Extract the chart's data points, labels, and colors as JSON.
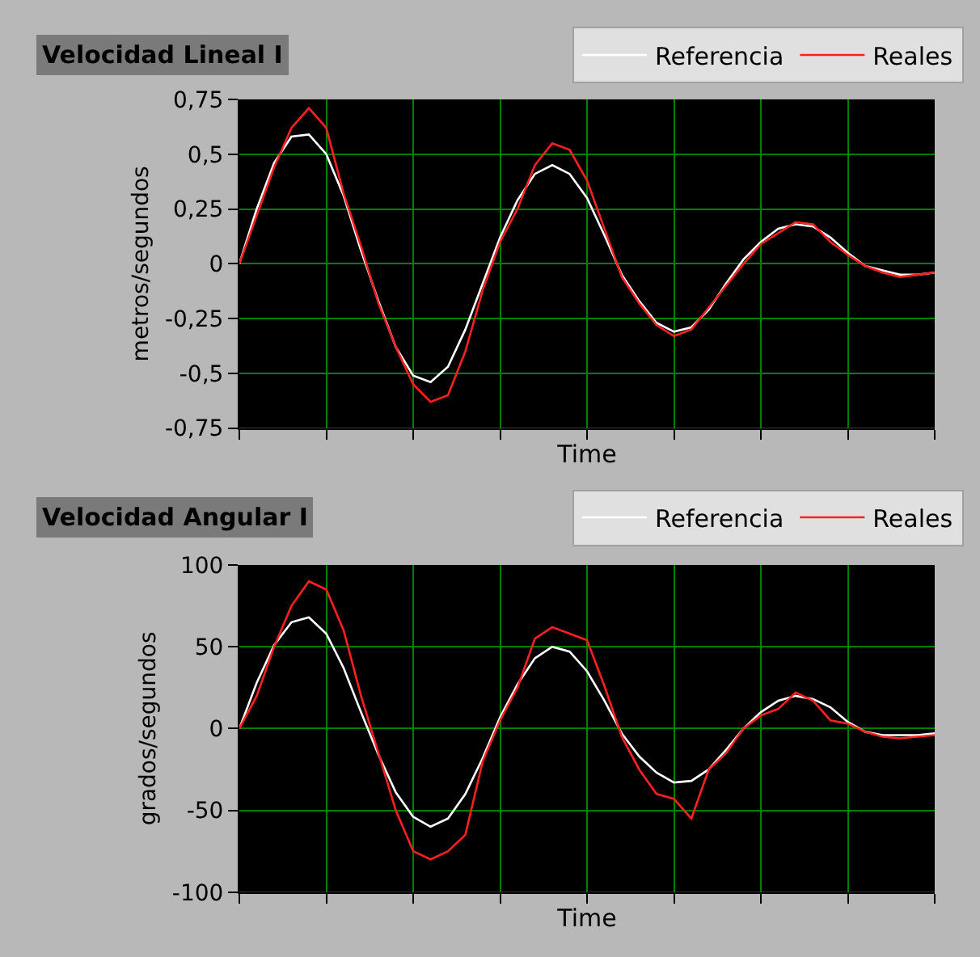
{
  "chart_data": [
    {
      "type": "line",
      "title": "Velocidad Lineal I",
      "xlabel": "Time",
      "ylabel": "metros/segundos",
      "categories": [
        null,
        null,
        null,
        null,
        null,
        null,
        null,
        null,
        null,
        null,
        null,
        null,
        null,
        null,
        null,
        null,
        null,
        null,
        null,
        null,
        null,
        null,
        null,
        null,
        null,
        null,
        null,
        null,
        null,
        null,
        null,
        null,
        null,
        null,
        null,
        null,
        null,
        null,
        null,
        null,
        null
      ],
      "series": [
        {
          "name": "Referencia",
          "color": "#ffffff",
          "values": [
            0,
            0.25,
            0.46,
            0.58,
            0.59,
            0.5,
            0.31,
            0.06,
            -0.17,
            -0.38,
            -0.51,
            -0.54,
            -0.47,
            -0.3,
            -0.09,
            0.12,
            0.29,
            0.41,
            0.45,
            0.41,
            0.3,
            0.13,
            -0.05,
            -0.17,
            -0.27,
            -0.31,
            -0.29,
            -0.21,
            -0.09,
            0.02,
            0.1,
            0.16,
            0.18,
            0.17,
            0.12,
            0.05,
            -0.01,
            -0.03,
            -0.05,
            -0.05,
            -0.04
          ]
        },
        {
          "name": "Reales",
          "color": "#ff2020",
          "values": [
            0,
            0.22,
            0.44,
            0.62,
            0.71,
            0.62,
            0.32,
            0.08,
            -0.18,
            -0.38,
            -0.55,
            -0.63,
            -0.6,
            -0.4,
            -0.12,
            0.1,
            0.25,
            0.45,
            0.55,
            0.52,
            0.38,
            0.16,
            -0.06,
            -0.18,
            -0.28,
            -0.33,
            -0.3,
            -0.2,
            -0.1,
            0,
            0.09,
            0.14,
            0.19,
            0.18,
            0.1,
            0.04,
            -0.01,
            -0.04,
            -0.06,
            -0.05,
            -0.04
          ]
        }
      ],
      "ylim": [
        -0.75,
        0.75
      ],
      "yticks": [
        {
          "value": -0.75,
          "label": "-0,75"
        },
        {
          "value": -0.5,
          "label": "-0,5"
        },
        {
          "value": -0.25,
          "label": "-0,25"
        },
        0,
        {
          "value": 0.25,
          "label": "0,25"
        },
        {
          "value": 0.5,
          "label": "0,5"
        },
        {
          "value": 0.75,
          "label": "0,75"
        }
      ],
      "tick_labels": "y",
      "grid": true,
      "legend": "top right",
      "line_style": "solid",
      "marker": "none"
    },
    {
      "type": "line",
      "title": "Velocidad Angular I",
      "xlabel": "Time",
      "ylabel": "grados/segundos",
      "categories": [
        null,
        null,
        null,
        null,
        null,
        null,
        null,
        null,
        null,
        null,
        null,
        null,
        null,
        null,
        null,
        null,
        null,
        null,
        null,
        null,
        null,
        null,
        null,
        null,
        null,
        null,
        null,
        null,
        null,
        null,
        null,
        null,
        null,
        null,
        null,
        null,
        null,
        null,
        null,
        null,
        null
      ],
      "series": [
        {
          "name": "Referencia",
          "color": "#ffffff",
          "values": [
            0,
            28,
            51,
            65,
            68,
            58,
            37,
            10,
            -16,
            -39,
            -54,
            -60,
            -55,
            -40,
            -18,
            7,
            27,
            43,
            50,
            47,
            35,
            17,
            -3,
            -17,
            -27,
            -33,
            -32,
            -25,
            -13,
            0,
            10,
            17,
            20,
            18,
            13,
            4,
            -2,
            -4,
            -4,
            -4,
            -3
          ]
        },
        {
          "name": "Reales",
          "color": "#ff2020",
          "values": [
            0,
            20,
            50,
            75,
            90,
            85,
            60,
            20,
            -15,
            -50,
            -75,
            -80,
            -75,
            -65,
            -20,
            5,
            25,
            55,
            62,
            58,
            54,
            26,
            -5,
            -25,
            -40,
            -43,
            -55,
            -25,
            -15,
            0,
            8,
            12,
            22,
            17,
            5,
            3,
            -2,
            -5,
            -6,
            -5,
            -4
          ]
        }
      ],
      "ylim": [
        -100,
        100
      ],
      "yticks": [
        -100,
        -50,
        0,
        50,
        100
      ],
      "tick_labels": "y",
      "grid": true,
      "legend": "top right",
      "line_style": "solid",
      "marker": "none"
    }
  ]
}
